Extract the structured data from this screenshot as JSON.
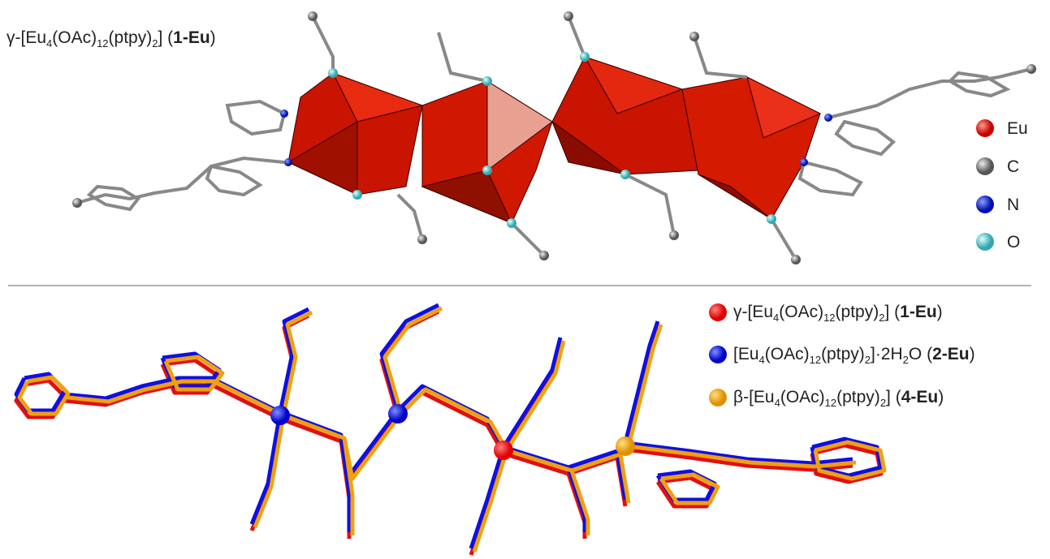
{
  "top_label": [
    "γ-[Eu",
    "4",
    "(OAc)",
    "12",
    "(ptpy)",
    "2",
    "] (",
    "1-Eu",
    ")"
  ],
  "atom_legend": [
    "Eu",
    "C",
    "N",
    "O"
  ],
  "overlay_legend": [
    [
      "γ-[Eu",
      "4",
      "(OAc)",
      "12",
      "(ptpy)",
      "2",
      "] (",
      "1-Eu",
      ")"
    ],
    [
      "[Eu",
      "4",
      "(OAc)",
      "12",
      "(ptpy)",
      "2",
      "]·2H",
      "2",
      "O (",
      "2-Eu",
      ")"
    ],
    [
      "β-[Eu",
      "4",
      "(OAc)",
      "12",
      "(ptpy)",
      "2",
      "] (",
      "4-Eu",
      ")"
    ]
  ]
}
